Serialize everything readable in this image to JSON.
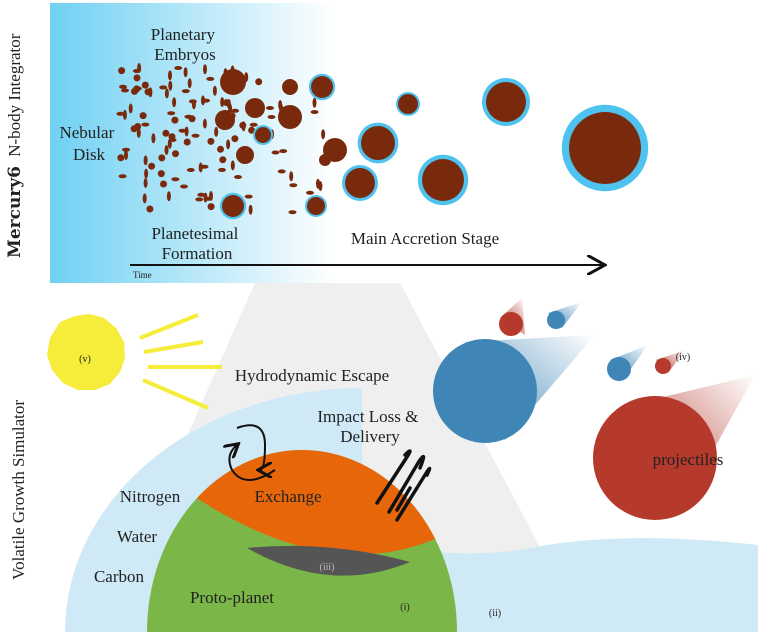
{
  "top_panel": {
    "side_label_bold": "Mercury6",
    "side_label": "N-body Integrator",
    "planetary_embryos": [
      "Planetary",
      "Embryos"
    ],
    "nebular_disk": [
      "Nebular",
      "Disk"
    ],
    "planetesimal_formation": [
      "Planetesimal",
      "Formation"
    ],
    "main_accretion": "Main Accretion Stage",
    "time_label": "Time"
  },
  "bottom_panel": {
    "side_label": "Volatile Growth Simulator",
    "sun_label": "(v)",
    "hydrodynamic_escape": "Hydrodynamic Escape",
    "impact_loss": [
      "Impact Loss &",
      "Delivery"
    ],
    "nitrogen": "Nitrogen",
    "water": "Water",
    "carbon": "Carbon",
    "exchange": "Exchange",
    "proto_planet": "Proto-planet",
    "label_i": "(i)",
    "label_ii": "(ii)",
    "label_iii": "(iii)",
    "label_iv": "(iv)",
    "projectiles": "projectiles"
  },
  "colors": {
    "planet": "#7a2a0c",
    "ring": "#4fc3f0",
    "atmosphere": "#cfe9f6",
    "mantle": "#e8660a",
    "crust": "#7ab648",
    "core": "#555555",
    "sun": "#f6ec3a",
    "blue_projectile": "#3f85b6",
    "red_projectile": "#b53a2c"
  }
}
